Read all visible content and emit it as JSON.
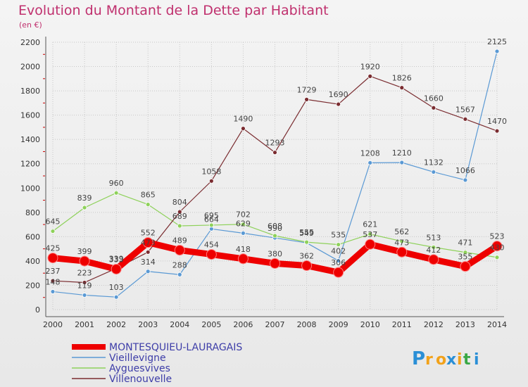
{
  "header": {
    "title": "Evolution du Montant de la Dette par Habitant",
    "subtitle": "(en €)"
  },
  "logo": {
    "text": "Proxiti"
  },
  "colors": {
    "title": "#c0306e",
    "grid": "#c8c8c8",
    "series": [
      "#ee0000",
      "#5a99d4",
      "#8ed15a",
      "#7a2c30"
    ]
  },
  "chart_data": {
    "type": "line",
    "title": "Evolution du Montant de la Dette par Habitant",
    "ylabel": "(en €)",
    "xlabel": "",
    "x": [
      "2000",
      "2001",
      "2002",
      "2003",
      "2004",
      "2005",
      "2006",
      "2007",
      "2008",
      "2009",
      "2010",
      "2011",
      "2012",
      "2013",
      "2014"
    ],
    "ylim": [
      0,
      2200
    ],
    "yticks": [
      0,
      200,
      400,
      600,
      800,
      1000,
      1200,
      1400,
      1600,
      1800,
      2000,
      2200
    ],
    "grid": true,
    "legend": "bottom-left",
    "series": [
      {
        "name": "MONTESQUIEU-LAURAGAIS",
        "values": [
          425,
          399,
          333,
          552,
          489,
          454,
          418,
          380,
          362,
          306,
          537,
          473,
          412,
          355,
          523
        ]
      },
      {
        "name": "Vieillevigne",
        "values": [
          148,
          119,
          103,
          314,
          288,
          664,
          629,
          590,
          549,
          402,
          1208,
          1210,
          1132,
          1066,
          2125
        ]
      },
      {
        "name": "Ayguesvives",
        "values": [
          645,
          839,
          960,
          865,
          689,
          695,
          702,
          608,
          555,
          535,
          621,
          562,
          513,
          471,
          430
        ]
      },
      {
        "name": "Villenouvelle",
        "values": [
          237,
          223,
          339,
          473,
          804,
          1058,
          1490,
          1293,
          1729,
          1690,
          1920,
          1826,
          1660,
          1567,
          1470
        ]
      }
    ]
  }
}
